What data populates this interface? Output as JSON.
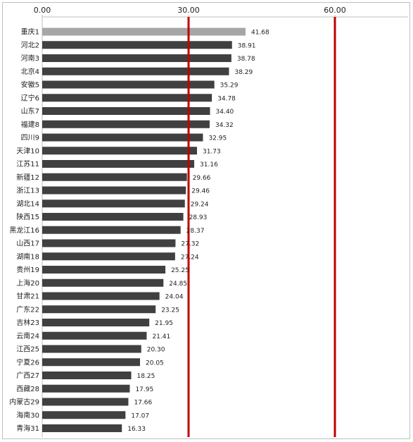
{
  "chart_data": {
    "type": "bar",
    "orientation": "horizontal",
    "categories": [
      "重庆1",
      "河北2",
      "河南3",
      "北京4",
      "安徽5",
      "辽宁6",
      "山东7",
      "福建8",
      "四川9",
      "天津10",
      "江苏11",
      "新疆12",
      "浙江13",
      "湖北14",
      "陕西15",
      "黑龙江16",
      "山西17",
      "湖南18",
      "贵州19",
      "上海20",
      "甘肃21",
      "广东22",
      "吉林23",
      "云南24",
      "江西25",
      "宁夏26",
      "广西27",
      "西藏28",
      "内蒙古29",
      "海南30",
      "青海31"
    ],
    "values": [
      41.68,
      38.91,
      38.78,
      38.29,
      35.29,
      34.78,
      34.4,
      34.32,
      32.95,
      31.73,
      31.16,
      29.66,
      29.46,
      29.24,
      28.93,
      28.37,
      27.32,
      27.24,
      25.25,
      24.85,
      24.04,
      23.25,
      21.95,
      21.41,
      20.3,
      20.05,
      18.25,
      17.95,
      17.66,
      17.07,
      16.33
    ],
    "value_labels": [
      "41.68",
      "38.91",
      "38.78",
      "38.29",
      "35.29",
      "34.78",
      "34.40",
      "34.32",
      "32.95",
      "31.73",
      "31.16",
      "29.66",
      "29.46",
      "29.24",
      "28.93",
      "28.37",
      "27.32",
      "27.24",
      "25.25",
      "24.85",
      "24.04",
      "23.25",
      "21.95",
      "21.41",
      "20.30",
      "20.05",
      "18.25",
      "17.95",
      "17.66",
      "17.07",
      "16.33"
    ],
    "x_ticks": [
      "0.00",
      "30.00",
      "60.00"
    ],
    "x_tick_values": [
      0,
      30,
      60
    ],
    "xlim": [
      0,
      75
    ],
    "reference_lines": [
      30,
      60
    ],
    "axis_position": "top",
    "grid": false,
    "legend": "none",
    "title": "",
    "xlabel": "",
    "ylabel": "",
    "colors": {
      "bar": "#404040",
      "highlight_bar": "#a6a6a6",
      "reference_line": "#c00000",
      "axis": "#bfbfbf"
    },
    "highlight_index": 0
  }
}
